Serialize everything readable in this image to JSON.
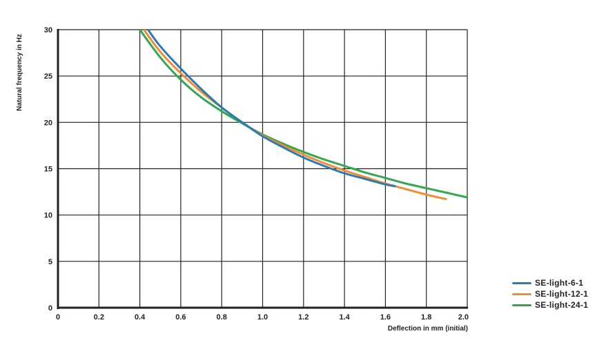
{
  "chart_data": {
    "type": "line",
    "title": "",
    "xlabel": "Deflection in mm (initial)",
    "ylabel": "Natural frequency in Hz",
    "xlim": [
      0,
      2.0
    ],
    "ylim": [
      0,
      30
    ],
    "x_ticks": [
      "0",
      "0.2",
      "0.4",
      "0.6",
      "0.8",
      "1.0",
      "1.2",
      "1.4",
      "1.6",
      "1.8",
      "2.0"
    ],
    "y_ticks": [
      "0",
      "5",
      "10",
      "15",
      "20",
      "25",
      "30"
    ],
    "grid": true,
    "legend_position": "right-bottom",
    "series": [
      {
        "name": "SE-light-6-1",
        "color": "#2a7ab8",
        "x": [
          0.44,
          0.5,
          0.6,
          0.7,
          0.8,
          0.9,
          1.0,
          1.1,
          1.2,
          1.3,
          1.4,
          1.5,
          1.6,
          1.65
        ],
        "values": [
          30.0,
          28.2,
          25.8,
          23.6,
          21.6,
          20.0,
          18.5,
          17.3,
          16.2,
          15.3,
          14.5,
          13.9,
          13.3,
          13.1
        ]
      },
      {
        "name": "SE-light-12-1",
        "color": "#f58a2e",
        "x": [
          0.42,
          0.5,
          0.6,
          0.7,
          0.8,
          0.9,
          1.0,
          1.1,
          1.2,
          1.3,
          1.4,
          1.5,
          1.6,
          1.7,
          1.8,
          1.9
        ],
        "values": [
          30.0,
          27.6,
          25.3,
          23.3,
          21.6,
          20.0,
          18.6,
          17.5,
          16.5,
          15.6,
          14.8,
          14.1,
          13.4,
          12.8,
          12.2,
          11.7
        ]
      },
      {
        "name": "SE-light-24-1",
        "color": "#2fa84f",
        "x": [
          0.4,
          0.5,
          0.6,
          0.7,
          0.8,
          0.9,
          1.0,
          1.1,
          1.2,
          1.3,
          1.4,
          1.5,
          1.6,
          1.7,
          1.8,
          1.9,
          2.0
        ],
        "values": [
          30.0,
          27.0,
          24.6,
          22.7,
          21.2,
          19.9,
          18.7,
          17.7,
          16.8,
          16.0,
          15.3,
          14.6,
          14.0,
          13.4,
          12.9,
          12.4,
          11.9
        ]
      }
    ]
  },
  "legend": {
    "items": [
      {
        "label": "SE-light-6-1",
        "color": "#2a7ab8"
      },
      {
        "label": "SE-light-12-1",
        "color": "#f58a2e"
      },
      {
        "label": "SE-light-24-1",
        "color": "#2fa84f"
      }
    ]
  }
}
